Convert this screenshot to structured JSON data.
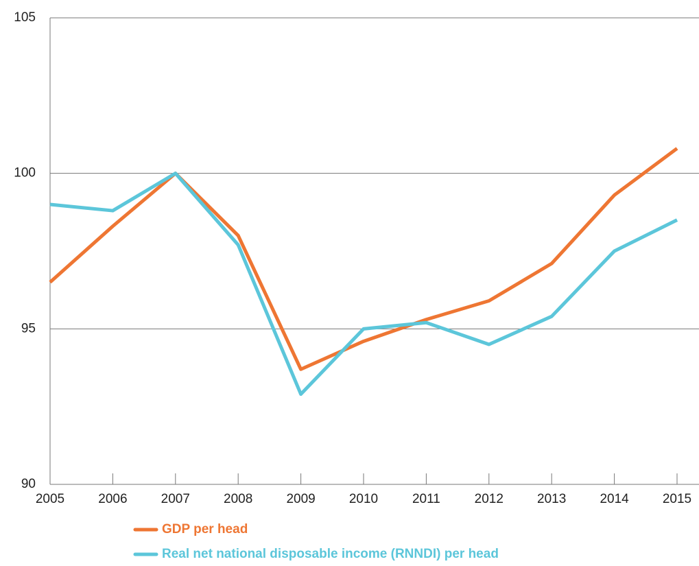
{
  "chart_data": {
    "type": "line",
    "x": [
      2005,
      2006,
      2007,
      2008,
      2009,
      2010,
      2011,
      2012,
      2013,
      2014,
      2015
    ],
    "series": [
      {
        "name": "GDP per head",
        "color": "#ee7633",
        "values": [
          96.5,
          98.3,
          100.0,
          98.0,
          93.7,
          94.6,
          95.3,
          95.9,
          97.1,
          99.3,
          100.8
        ]
      },
      {
        "name": "Real net national disposable income (RNNDI) per head",
        "color": "#5cc6da",
        "values": [
          99.0,
          98.8,
          100.0,
          97.7,
          92.9,
          95.0,
          95.2,
          94.5,
          95.4,
          97.5,
          98.5
        ]
      }
    ],
    "xlim": [
      2005,
      2015
    ],
    "xticks": [
      2005,
      2006,
      2007,
      2008,
      2009,
      2010,
      2011,
      2012,
      2013,
      2014,
      2015
    ],
    "ylim": [
      90,
      105
    ],
    "yticks": [
      90,
      95,
      100,
      105
    ],
    "grid": true
  }
}
